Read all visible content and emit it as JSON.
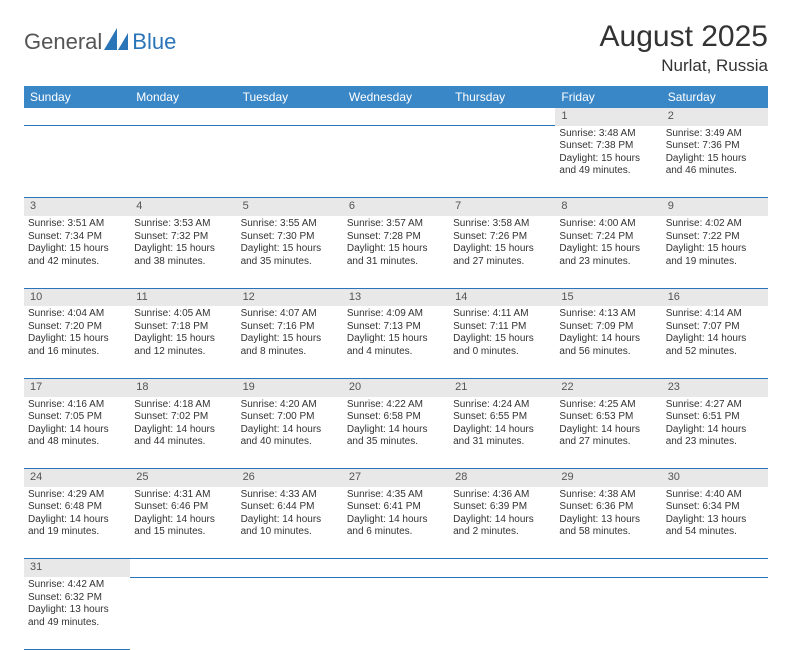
{
  "logo": {
    "part1": "General",
    "part2": "Blue"
  },
  "title": "August 2025",
  "location": "Nurlat, Russia",
  "weekdays": [
    "Sunday",
    "Monday",
    "Tuesday",
    "Wednesday",
    "Thursday",
    "Friday",
    "Saturday"
  ],
  "colors": {
    "header_bg": "#3a87c8",
    "daynum_bg": "#e8e8e8",
    "border": "#2a74b8",
    "logo_blue": "#2a74b8"
  },
  "weeks": [
    [
      null,
      null,
      null,
      null,
      null,
      {
        "d": "1",
        "sr": "3:48 AM",
        "ss": "7:38 PM",
        "dl": "15 hours and 49 minutes."
      },
      {
        "d": "2",
        "sr": "3:49 AM",
        "ss": "7:36 PM",
        "dl": "15 hours and 46 minutes."
      }
    ],
    [
      {
        "d": "3",
        "sr": "3:51 AM",
        "ss": "7:34 PM",
        "dl": "15 hours and 42 minutes."
      },
      {
        "d": "4",
        "sr": "3:53 AM",
        "ss": "7:32 PM",
        "dl": "15 hours and 38 minutes."
      },
      {
        "d": "5",
        "sr": "3:55 AM",
        "ss": "7:30 PM",
        "dl": "15 hours and 35 minutes."
      },
      {
        "d": "6",
        "sr": "3:57 AM",
        "ss": "7:28 PM",
        "dl": "15 hours and 31 minutes."
      },
      {
        "d": "7",
        "sr": "3:58 AM",
        "ss": "7:26 PM",
        "dl": "15 hours and 27 minutes."
      },
      {
        "d": "8",
        "sr": "4:00 AM",
        "ss": "7:24 PM",
        "dl": "15 hours and 23 minutes."
      },
      {
        "d": "9",
        "sr": "4:02 AM",
        "ss": "7:22 PM",
        "dl": "15 hours and 19 minutes."
      }
    ],
    [
      {
        "d": "10",
        "sr": "4:04 AM",
        "ss": "7:20 PM",
        "dl": "15 hours and 16 minutes."
      },
      {
        "d": "11",
        "sr": "4:05 AM",
        "ss": "7:18 PM",
        "dl": "15 hours and 12 minutes."
      },
      {
        "d": "12",
        "sr": "4:07 AM",
        "ss": "7:16 PM",
        "dl": "15 hours and 8 minutes."
      },
      {
        "d": "13",
        "sr": "4:09 AM",
        "ss": "7:13 PM",
        "dl": "15 hours and 4 minutes."
      },
      {
        "d": "14",
        "sr": "4:11 AM",
        "ss": "7:11 PM",
        "dl": "15 hours and 0 minutes."
      },
      {
        "d": "15",
        "sr": "4:13 AM",
        "ss": "7:09 PM",
        "dl": "14 hours and 56 minutes."
      },
      {
        "d": "16",
        "sr": "4:14 AM",
        "ss": "7:07 PM",
        "dl": "14 hours and 52 minutes."
      }
    ],
    [
      {
        "d": "17",
        "sr": "4:16 AM",
        "ss": "7:05 PM",
        "dl": "14 hours and 48 minutes."
      },
      {
        "d": "18",
        "sr": "4:18 AM",
        "ss": "7:02 PM",
        "dl": "14 hours and 44 minutes."
      },
      {
        "d": "19",
        "sr": "4:20 AM",
        "ss": "7:00 PM",
        "dl": "14 hours and 40 minutes."
      },
      {
        "d": "20",
        "sr": "4:22 AM",
        "ss": "6:58 PM",
        "dl": "14 hours and 35 minutes."
      },
      {
        "d": "21",
        "sr": "4:24 AM",
        "ss": "6:55 PM",
        "dl": "14 hours and 31 minutes."
      },
      {
        "d": "22",
        "sr": "4:25 AM",
        "ss": "6:53 PM",
        "dl": "14 hours and 27 minutes."
      },
      {
        "d": "23",
        "sr": "4:27 AM",
        "ss": "6:51 PM",
        "dl": "14 hours and 23 minutes."
      }
    ],
    [
      {
        "d": "24",
        "sr": "4:29 AM",
        "ss": "6:48 PM",
        "dl": "14 hours and 19 minutes."
      },
      {
        "d": "25",
        "sr": "4:31 AM",
        "ss": "6:46 PM",
        "dl": "14 hours and 15 minutes."
      },
      {
        "d": "26",
        "sr": "4:33 AM",
        "ss": "6:44 PM",
        "dl": "14 hours and 10 minutes."
      },
      {
        "d": "27",
        "sr": "4:35 AM",
        "ss": "6:41 PM",
        "dl": "14 hours and 6 minutes."
      },
      {
        "d": "28",
        "sr": "4:36 AM",
        "ss": "6:39 PM",
        "dl": "14 hours and 2 minutes."
      },
      {
        "d": "29",
        "sr": "4:38 AM",
        "ss": "6:36 PM",
        "dl": "13 hours and 58 minutes."
      },
      {
        "d": "30",
        "sr": "4:40 AM",
        "ss": "6:34 PM",
        "dl": "13 hours and 54 minutes."
      }
    ],
    [
      {
        "d": "31",
        "sr": "4:42 AM",
        "ss": "6:32 PM",
        "dl": "13 hours and 49 minutes."
      },
      null,
      null,
      null,
      null,
      null,
      null
    ]
  ]
}
